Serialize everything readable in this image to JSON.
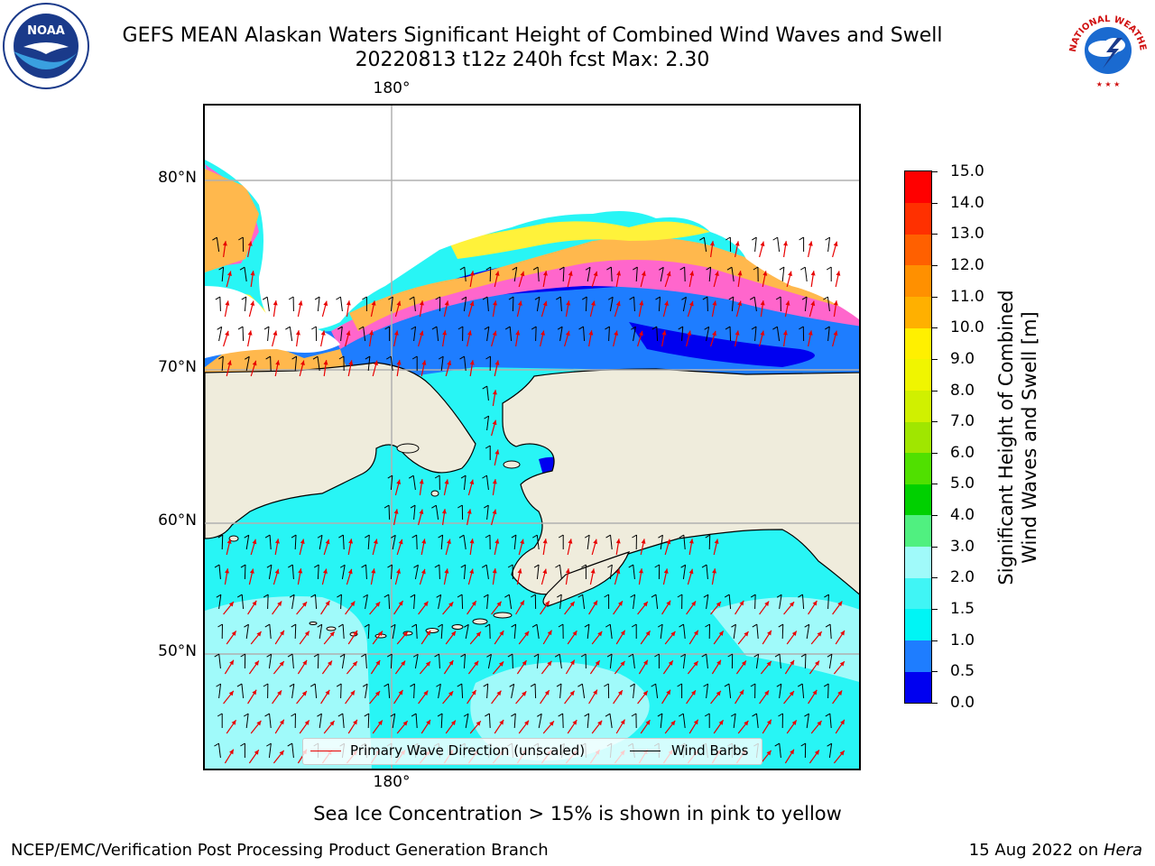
{
  "header": {
    "title_line1": "GEFS MEAN Alaskan Waters Significant Height of Combined Wind Waves and Swell",
    "title_line2": "20220813 t12z 240h fcst   Max: 2.30"
  },
  "logos": {
    "left": {
      "icon": "noaa-logo",
      "text": "NOAA"
    },
    "right": {
      "icon": "national-weather-service-logo",
      "text": "NATIONAL WEATHER SERVICE"
    }
  },
  "map": {
    "lon_labels": {
      "top": "180°",
      "bottom": "180°"
    },
    "lat_labels": [
      "80°N",
      "70°N",
      "60°N",
      "50°N"
    ],
    "colors": {
      "ocean_main": "#28f5f5",
      "ocean_light": "#a0fafa",
      "ocean_mid": "#1e7dff",
      "ocean_deep": "#0000f0",
      "land": "#efecdc",
      "ice_pink": "#ff66cc",
      "ice_orange": "#ffb84d",
      "ice_yellow": "#fff23a",
      "wave_arrow": "#e80000",
      "wind_barb": "#000000",
      "gridline": "#b0b0b0"
    }
  },
  "legend": {
    "items": [
      {
        "label": "Primary Wave Direction (unscaled)",
        "color": "#e80000"
      },
      {
        "label": "Wind Barbs",
        "color": "#000000"
      }
    ]
  },
  "colorbar": {
    "title_line1": "Significant Height of Combined",
    "title_line2": "Wind Waves and Swell [m]",
    "ticks": [
      "0.0",
      "0.5",
      "1.0",
      "1.5",
      "2.0",
      "3.0",
      "4.0",
      "5.0",
      "6.0",
      "7.0",
      "8.0",
      "9.0",
      "10.0",
      "11.0",
      "12.0",
      "13.0",
      "14.0",
      "15.0"
    ],
    "colors": [
      "#0000f0",
      "#1e7dff",
      "#00f5f5",
      "#40f5f5",
      "#a0fafa",
      "#50f080",
      "#00d000",
      "#50e000",
      "#a0e600",
      "#d0f000",
      "#f0f500",
      "#fff000",
      "#ffb000",
      "#ff9000",
      "#ff6000",
      "#ff3000",
      "#ff0000"
    ]
  },
  "caption": "Sea Ice Concentration > 15% is shown in pink to yellow",
  "footer": {
    "left": "NCEP/EMC/Verification Post Processing Product Generation Branch",
    "right_prefix": "15 Aug 2022 on ",
    "right_machine": "Hera"
  }
}
